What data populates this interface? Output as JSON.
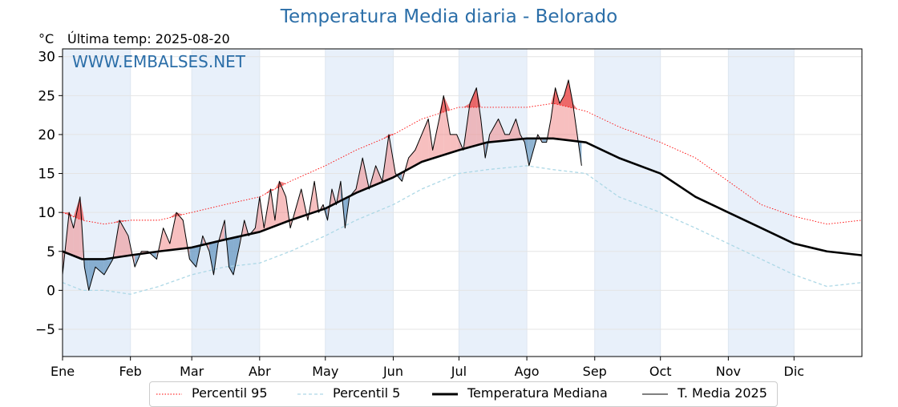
{
  "header": {
    "title": "Temperatura Media diaria - Belorado",
    "unit": "°C",
    "last_temp": "Última temp: 2025-08-20"
  },
  "watermark": "WWW.EMBALSES.NET",
  "legend": {
    "p95": "Percentil 95",
    "p5": "Percentil 5",
    "median": "Temperatura Mediana",
    "media2025": "T. Media 2025"
  },
  "colors": {
    "p95": "#ff0000",
    "p5": "#add8e6",
    "median": "#000000",
    "media2025": "#000000",
    "above": "#f08080",
    "below": "#4682b4",
    "month_band": "#e8f0fa",
    "title": "#2b6ea8"
  },
  "chart_data": {
    "type": "line",
    "ylim": [
      -8.5,
      31
    ],
    "yticks": [
      -5,
      0,
      5,
      10,
      15,
      20,
      25,
      30
    ],
    "ytick_labels": [
      "−5",
      "0",
      "5",
      "10",
      "15",
      "20",
      "25",
      "30"
    ],
    "xlim": [
      1,
      366
    ],
    "month_labels": [
      "Ene",
      "Feb",
      "Mar",
      "Abr",
      "May",
      "Jun",
      "Jul",
      "Ago",
      "Sep",
      "Oct",
      "Nov",
      "Dic"
    ],
    "month_start_days": [
      1,
      32,
      60,
      91,
      121,
      152,
      182,
      213,
      244,
      274,
      305,
      335
    ],
    "grid": true,
    "legend_position": "bottom",
    "series": [
      {
        "name": "Percentil 95",
        "style": "dotted",
        "points": [
          [
            1,
            10
          ],
          [
            10,
            9
          ],
          [
            20,
            8.5
          ],
          [
            32,
            9
          ],
          [
            45,
            9
          ],
          [
            60,
            10
          ],
          [
            75,
            11
          ],
          [
            91,
            12
          ],
          [
            105,
            14
          ],
          [
            121,
            16
          ],
          [
            135,
            18
          ],
          [
            152,
            20
          ],
          [
            165,
            22
          ],
          [
            182,
            23.5
          ],
          [
            195,
            23.5
          ],
          [
            213,
            23.5
          ],
          [
            225,
            24
          ],
          [
            240,
            23
          ],
          [
            255,
            21
          ],
          [
            274,
            19
          ],
          [
            290,
            17
          ],
          [
            305,
            14
          ],
          [
            320,
            11
          ],
          [
            335,
            9.5
          ],
          [
            350,
            8.5
          ],
          [
            366,
            9
          ]
        ]
      },
      {
        "name": "Percentil 5",
        "style": "dashed",
        "points": [
          [
            1,
            1
          ],
          [
            10,
            0
          ],
          [
            20,
            0
          ],
          [
            32,
            -0.5
          ],
          [
            45,
            0.5
          ],
          [
            60,
            2
          ],
          [
            75,
            3
          ],
          [
            91,
            3.5
          ],
          [
            105,
            5
          ],
          [
            121,
            7
          ],
          [
            135,
            9
          ],
          [
            152,
            11
          ],
          [
            165,
            13
          ],
          [
            182,
            15
          ],
          [
            195,
            15.5
          ],
          [
            213,
            16
          ],
          [
            225,
            15.5
          ],
          [
            240,
            15
          ],
          [
            255,
            12
          ],
          [
            274,
            10
          ],
          [
            290,
            8
          ],
          [
            305,
            6
          ],
          [
            320,
            4
          ],
          [
            335,
            2
          ],
          [
            350,
            0.5
          ],
          [
            366,
            1
          ]
        ]
      },
      {
        "name": "Temperatura Mediana",
        "style": "solid-bold",
        "points": [
          [
            1,
            5
          ],
          [
            10,
            4
          ],
          [
            20,
            4
          ],
          [
            32,
            4.5
          ],
          [
            45,
            5
          ],
          [
            60,
            5.5
          ],
          [
            75,
            6.5
          ],
          [
            91,
            7.5
          ],
          [
            105,
            9
          ],
          [
            121,
            10.5
          ],
          [
            135,
            12.5
          ],
          [
            152,
            14.5
          ],
          [
            165,
            16.5
          ],
          [
            182,
            18
          ],
          [
            195,
            19
          ],
          [
            213,
            19.5
          ],
          [
            225,
            19.5
          ],
          [
            240,
            19
          ],
          [
            255,
            17
          ],
          [
            274,
            15
          ],
          [
            290,
            12
          ],
          [
            305,
            10
          ],
          [
            320,
            8
          ],
          [
            335,
            6
          ],
          [
            350,
            5
          ],
          [
            366,
            4.5
          ]
        ]
      },
      {
        "name": "T. Media 2025",
        "style": "solid",
        "points": [
          [
            1,
            2
          ],
          [
            4,
            10
          ],
          [
            6,
            8
          ],
          [
            9,
            12
          ],
          [
            11,
            3
          ],
          [
            13,
            0
          ],
          [
            16,
            3
          ],
          [
            20,
            2
          ],
          [
            24,
            4
          ],
          [
            27,
            9
          ],
          [
            31,
            7
          ],
          [
            34,
            3
          ],
          [
            37,
            5
          ],
          [
            40,
            5
          ],
          [
            44,
            4
          ],
          [
            47,
            8
          ],
          [
            50,
            6
          ],
          [
            53,
            10
          ],
          [
            56,
            9
          ],
          [
            59,
            4
          ],
          [
            62,
            3
          ],
          [
            65,
            7
          ],
          [
            68,
            5
          ],
          [
            70,
            2
          ],
          [
            72,
            6
          ],
          [
            75,
            9
          ],
          [
            77,
            3
          ],
          [
            79,
            2
          ],
          [
            82,
            6
          ],
          [
            84,
            9
          ],
          [
            86,
            7
          ],
          [
            89,
            8
          ],
          [
            91,
            12
          ],
          [
            93,
            8
          ],
          [
            96,
            13
          ],
          [
            98,
            9
          ],
          [
            100,
            14
          ],
          [
            103,
            12
          ],
          [
            105,
            8
          ],
          [
            108,
            11
          ],
          [
            110,
            13
          ],
          [
            113,
            9
          ],
          [
            116,
            14
          ],
          [
            118,
            10
          ],
          [
            120,
            11
          ],
          [
            122,
            9
          ],
          [
            124,
            13
          ],
          [
            126,
            11
          ],
          [
            128,
            14
          ],
          [
            130,
            8
          ],
          [
            132,
            12
          ],
          [
            135,
            13
          ],
          [
            138,
            17
          ],
          [
            141,
            13
          ],
          [
            144,
            16
          ],
          [
            147,
            14
          ],
          [
            150,
            20
          ],
          [
            153,
            15
          ],
          [
            156,
            14
          ],
          [
            159,
            17
          ],
          [
            162,
            18
          ],
          [
            165,
            20
          ],
          [
            168,
            22
          ],
          [
            170,
            18
          ],
          [
            173,
            22
          ],
          [
            175,
            25
          ],
          [
            178,
            20
          ],
          [
            181,
            20
          ],
          [
            184,
            18
          ],
          [
            187,
            24
          ],
          [
            190,
            26
          ],
          [
            192,
            22
          ],
          [
            194,
            17
          ],
          [
            196,
            20
          ],
          [
            198,
            21
          ],
          [
            200,
            22
          ],
          [
            203,
            20
          ],
          [
            205,
            20
          ],
          [
            208,
            22
          ],
          [
            210,
            20
          ],
          [
            212,
            19
          ],
          [
            214,
            16
          ],
          [
            216,
            18
          ],
          [
            218,
            20
          ],
          [
            220,
            19
          ],
          [
            222,
            19
          ],
          [
            224,
            22
          ],
          [
            226,
            26
          ],
          [
            228,
            24
          ],
          [
            230,
            25
          ],
          [
            232,
            27
          ],
          [
            234,
            24
          ],
          [
            236,
            20
          ],
          [
            238,
            16
          ]
        ]
      }
    ]
  }
}
